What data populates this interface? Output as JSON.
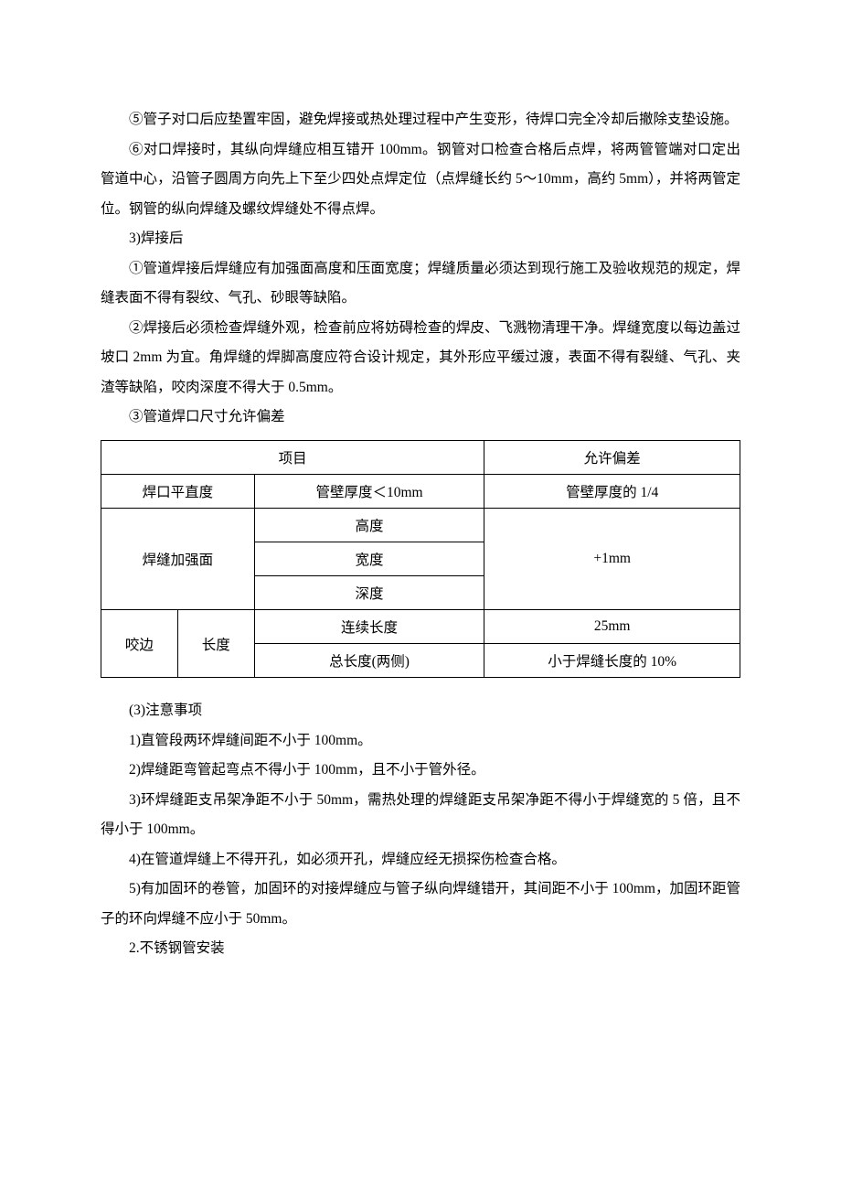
{
  "paragraphs": {
    "p1": "⑤管子对口后应垫置牢固，避免焊接或热处理过程中产生变形，待焊口完全冷却后撤除支垫设施。",
    "p2": "⑥对口焊接时，其纵向焊缝应相互错开 100mm。钢管对口检查合格后点焊，将两管管端对口定出管道中心，沿管子圆周方向先上下至少四处点焊定位（点焊缝长约 5～10mm，高约 5mm），并将两管定位。钢管的纵向焊缝及螺纹焊缝处不得点焊。",
    "p3": "3)焊接后",
    "p4": "①管道焊接后焊缝应有加强面高度和压面宽度；焊缝质量必须达到现行施工及验收规范的规定，焊缝表面不得有裂纹、气孔、砂眼等缺陷。",
    "p5": "②焊接后必须检查焊缝外观，检查前应将妨碍检查的焊皮、飞溅物清理干净。焊缝宽度以每边盖过坡口 2mm 为宜。角焊缝的焊脚高度应符合设计规定，其外形应平缓过渡，表面不得有裂缝、气孔、夹渣等缺陷，咬肉深度不得大于 0.5mm。",
    "p6": "③管道焊口尺寸允许偏差",
    "p7": "(3)注意事项",
    "p8": "1)直管段两环焊缝间距不小于 100mm。",
    "p9": "2)焊缝距弯管起弯点不得小于 100mm，且不小于管外径。",
    "p10": "3)环焊缝距支吊架净距不小于 50mm，需热处理的焊缝距支吊架净距不得小于焊缝宽的 5 倍，且不得小于 100mm。",
    "p11": "4)在管道焊缝上不得开孔，如必须开孔，焊缝应经无损探伤检查合格。",
    "p12": "5)有加固环的卷管，加固环的对接焊缝应与管子纵向焊缝错开，其间距不小于 100mm，加固环距管子的环向焊缝不应小于 50mm。",
    "p13": "2.不锈钢管安装"
  },
  "table": {
    "header": {
      "item": "项目",
      "tolerance": "允许偏差"
    },
    "rows": {
      "r1": {
        "a": "焊口平直度",
        "b": "管壁厚度＜10mm",
        "c": "管壁厚度的 1/4"
      },
      "r2": {
        "a": "焊缝加强面",
        "b1": "高度",
        "b2": "宽度",
        "b3": "深度",
        "c": "+1mm"
      },
      "r3": {
        "a1": "咬边",
        "a2": "长度",
        "b1": "连续长度",
        "b2": "总长度(两侧)",
        "c1": "25mm",
        "c2": "小于焊缝长度的 10%"
      }
    },
    "styles": {
      "border_color": "#000000",
      "font_size": 15.5,
      "text_color": "#000000",
      "background_color": "#ffffff",
      "cell_padding": "7px 4px"
    }
  }
}
